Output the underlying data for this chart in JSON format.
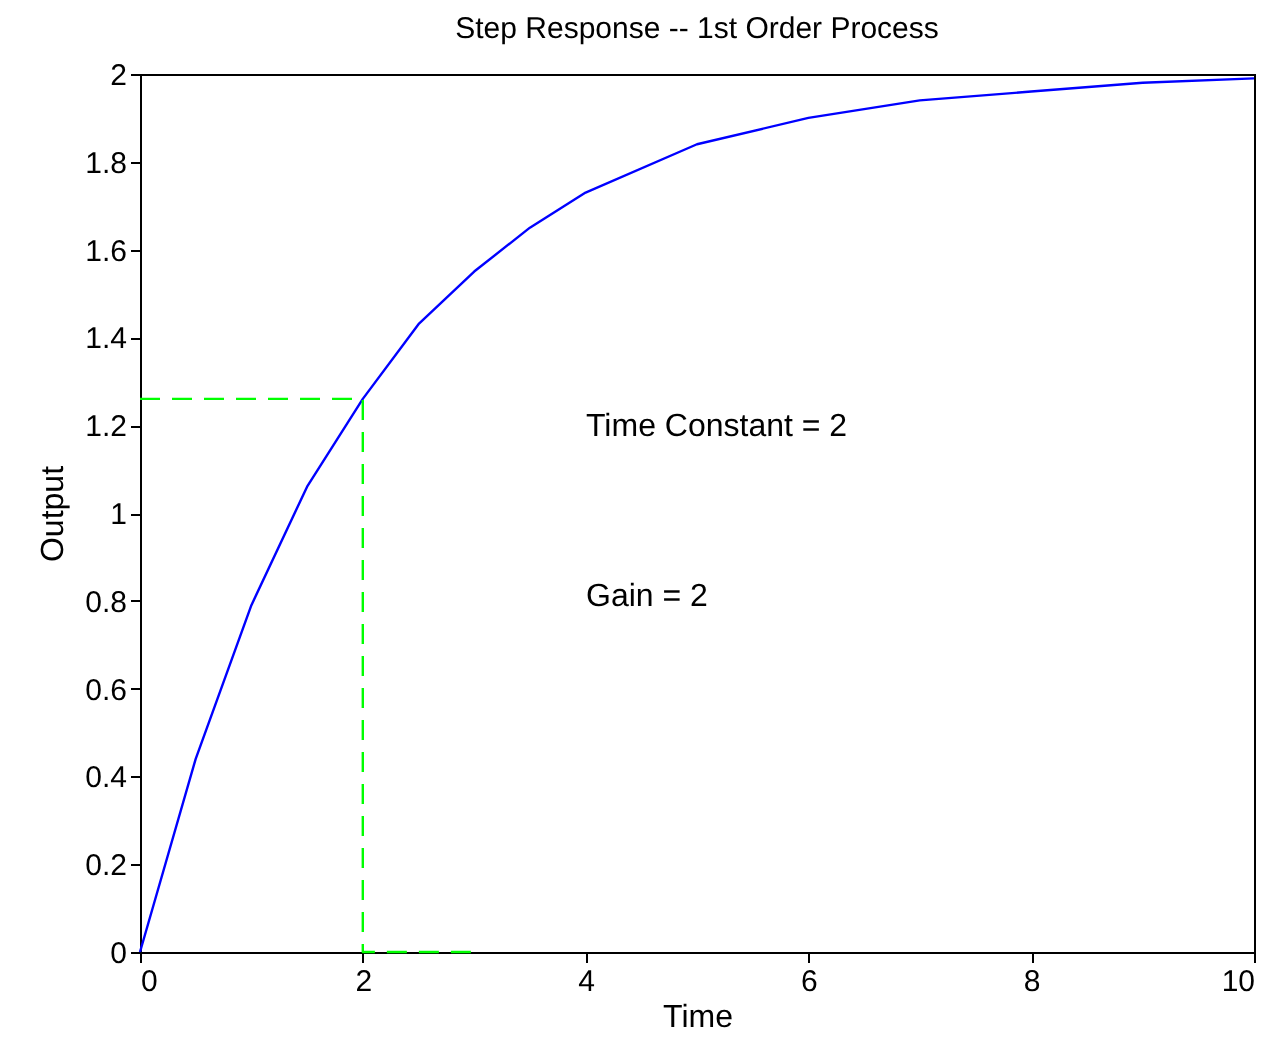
{
  "chart_data": {
    "type": "line",
    "title": "Step Response -- 1st Order Process",
    "xlabel": "Time",
    "ylabel": "Output",
    "xlim": [
      0,
      10
    ],
    "xticks": [
      0,
      2,
      4,
      6,
      8,
      10
    ],
    "ylim": [
      0,
      2
    ],
    "yticks": [
      0,
      0.2,
      0.4,
      0.6,
      0.8,
      1,
      1.2,
      1.4,
      1.6,
      1.8,
      2
    ],
    "grid": false,
    "marker": "none",
    "series": [
      {
        "color": "#0000ff",
        "line_style": "solid",
        "x": [
          0,
          0.5,
          1,
          1.5,
          2,
          2.5,
          3,
          3.5,
          4,
          5,
          6,
          7,
          8,
          9,
          10
        ],
        "values": [
          0,
          0.44,
          0.79,
          1.06,
          1.26,
          1.43,
          1.55,
          1.65,
          1.73,
          1.84,
          1.9,
          1.94,
          1.96,
          1.98,
          1.99
        ]
      },
      {
        "color": "#00ff00",
        "line_style": "dashed",
        "x": [
          0,
          2,
          2,
          3
        ],
        "values": [
          1.26,
          1.26,
          0,
          0
        ]
      }
    ],
    "annotations": [
      "Time Constant = 2",
      "Gain = 2"
    ]
  }
}
